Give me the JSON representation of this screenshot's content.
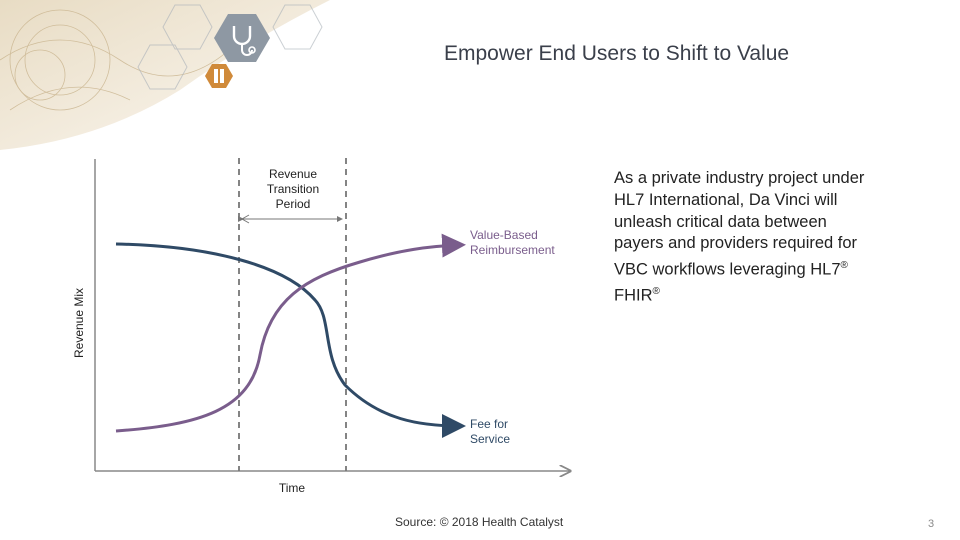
{
  "slide": {
    "title": "Empower End Users to Shift to Value",
    "body_line": "As a private industry project under HL7 International, Da Vinci will unleash critical data between payers and providers required for VBC workflows leveraging  HL7",
    "body_registered": "®",
    "body_fhir": " FHIR",
    "source": "Source: © 2018 Health Catalyst",
    "page_number": "3"
  },
  "diagram": {
    "y_axis_label": "Revenue Mix",
    "x_axis_label": "Time",
    "period_label_line1": "Revenue",
    "period_label_line2": "Transition",
    "period_label_line3": "Period",
    "value_label_line1": "Value-Based",
    "value_label_line2": "Reimbursement",
    "fee_label_line1": "Fee for",
    "fee_label_line2": "Service",
    "colors": {
      "value_based_curve": "#7a5d8c",
      "fee_for_service_curve": "#2f4a66",
      "axis": "#888888",
      "dashed_lines": "#777777"
    }
  },
  "decor": {
    "icons": [
      "stethoscope-icon",
      "test-tube-icon"
    ]
  }
}
